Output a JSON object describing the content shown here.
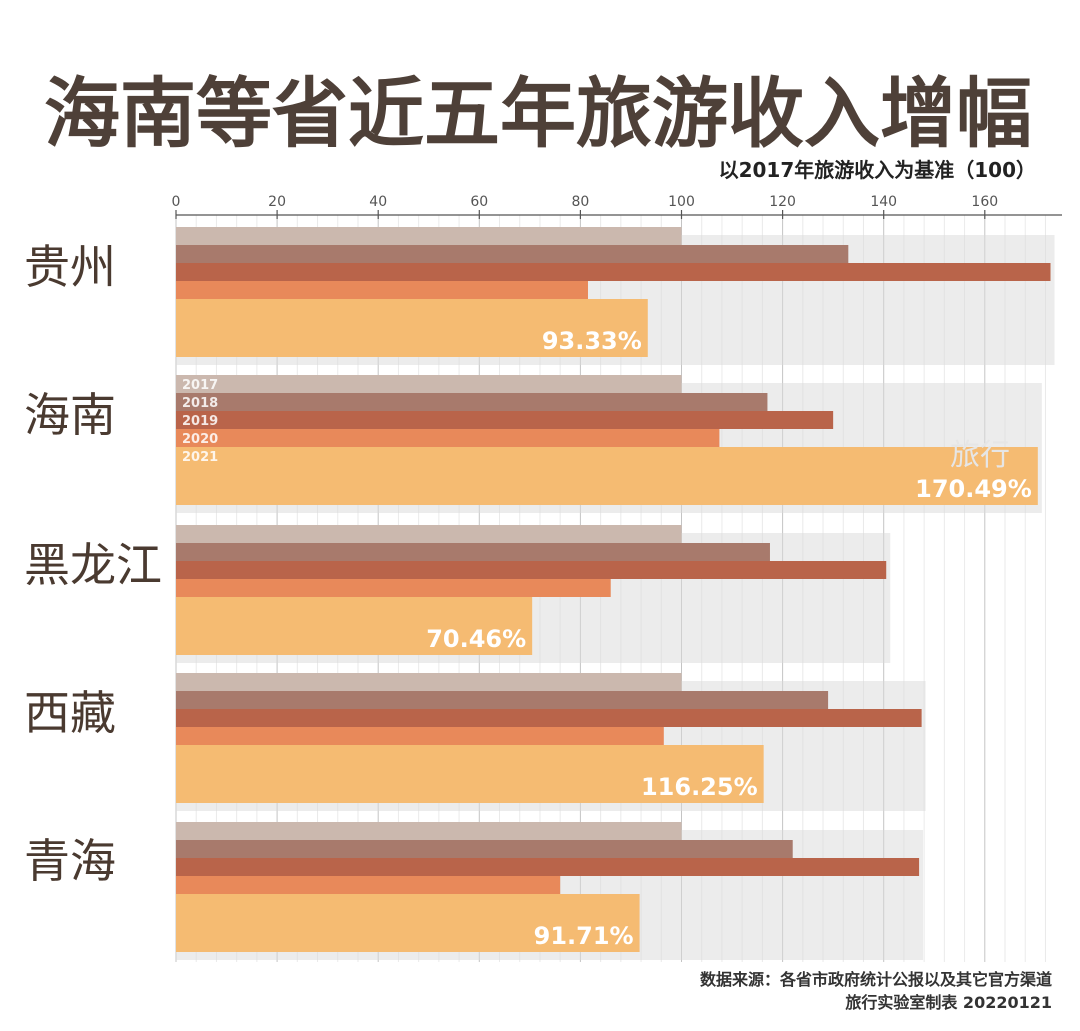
{
  "chart_data": {
    "type": "bar",
    "orientation": "horizontal",
    "title": "海南等省近五年旅游收入增幅",
    "subtitle": "以2017年旅游收入为基准（100）",
    "xlim": [
      0,
      175
    ],
    "xticks": [
      0,
      20,
      40,
      60,
      80,
      100,
      120,
      140,
      160
    ],
    "grid": true,
    "categories": [
      "贵州",
      "海南",
      "黑龙江",
      "西藏",
      "青海"
    ],
    "series": [
      {
        "name": "2017",
        "color": "#cbb8ae",
        "values": [
          100,
          100,
          100,
          100,
          100
        ]
      },
      {
        "name": "2018",
        "color": "#a87a6c",
        "values": [
          133,
          117,
          117.5,
          129,
          122
        ]
      },
      {
        "name": "2019",
        "color": "#b9644a",
        "values": [
          173,
          130,
          140.5,
          147.5,
          147
        ]
      },
      {
        "name": "2020",
        "color": "#e8895a",
        "values": [
          81.5,
          107.5,
          86,
          96.5,
          76
        ]
      },
      {
        "name": "2021",
        "color": "#f5bb72",
        "values": [
          93.33,
          170.49,
          70.46,
          116.25,
          91.71
        ]
      }
    ],
    "value_labels": [
      "93.33%",
      "170.49%",
      "70.46%",
      "116.25%",
      "91.71%"
    ],
    "legend_placement": "inside 海南 group, left"
  },
  "source_lines": [
    "数据来源：各省市政府统计公报以及其它官方渠道",
    "旅行实验室制表 20220121"
  ],
  "watermark": "旅行"
}
